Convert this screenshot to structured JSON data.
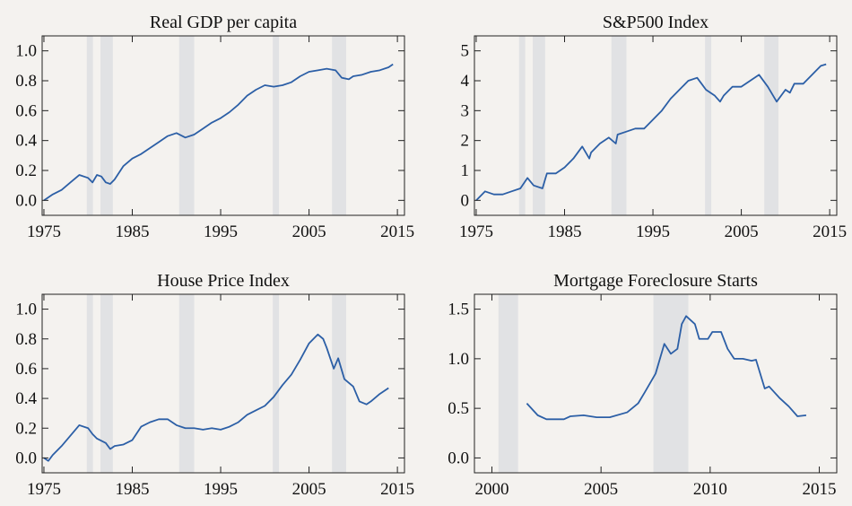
{
  "chart_data": [
    {
      "type": "line",
      "title": "Real GDP per capita",
      "color": "#2c5fa6",
      "x": [
        1975,
        1976,
        1977,
        1978,
        1979,
        1980,
        1980.5,
        1981,
        1981.5,
        1982,
        1982.5,
        1983,
        1984,
        1985,
        1986,
        1987,
        1988,
        1989,
        1990,
        1991,
        1992,
        1993,
        1994,
        1995,
        1996,
        1997,
        1998,
        1999,
        2000,
        2001,
        2002,
        2003,
        2004,
        2005,
        2006,
        2007,
        2008,
        2008.7,
        2009.5,
        2010,
        2011,
        2012,
        2013,
        2014,
        2014.5
      ],
      "values": [
        0.0,
        0.04,
        0.07,
        0.12,
        0.17,
        0.15,
        0.12,
        0.17,
        0.16,
        0.12,
        0.11,
        0.14,
        0.23,
        0.28,
        0.31,
        0.35,
        0.39,
        0.43,
        0.45,
        0.42,
        0.44,
        0.48,
        0.52,
        0.55,
        0.59,
        0.64,
        0.7,
        0.74,
        0.77,
        0.76,
        0.77,
        0.79,
        0.83,
        0.86,
        0.87,
        0.88,
        0.87,
        0.82,
        0.81,
        0.83,
        0.84,
        0.86,
        0.87,
        0.89,
        0.91
      ],
      "recessions": [
        [
          1979.85,
          1980.55
        ],
        [
          1981.4,
          1982.8
        ],
        [
          1990.3,
          1992.0
        ],
        [
          2000.9,
          2001.6
        ],
        [
          2007.6,
          2009.2
        ]
      ],
      "xlim": [
        1974.8,
        2015.8
      ],
      "xticks": [
        1975,
        1985,
        1995,
        2005,
        2015
      ],
      "ylim": [
        -0.1,
        1.1
      ],
      "yticks": [
        {
          "value": 0,
          "label": "0.0"
        },
        0.2,
        0.4,
        0.6,
        0.8,
        {
          "value": 1,
          "label": "1.0"
        }
      ]
    },
    {
      "type": "line",
      "title": "S&P500 Index",
      "color": "#2c5fa6",
      "x": [
        1975,
        1976,
        1977,
        1978,
        1979,
        1980,
        1980.8,
        1981.5,
        1982.5,
        1983,
        1984,
        1985,
        1986,
        1987,
        1987.8,
        1988,
        1989,
        1990,
        1990.8,
        1991,
        1992,
        1993,
        1994,
        1995,
        1996,
        1997,
        1998,
        1999,
        2000,
        2000.5,
        2001,
        2002,
        2002.6,
        2003,
        2004,
        2005,
        2006,
        2007,
        2008,
        2009,
        2010,
        2010.5,
        2011,
        2012,
        2013,
        2014,
        2014.6
      ],
      "values": [
        0.0,
        0.3,
        0.2,
        0.2,
        0.3,
        0.4,
        0.75,
        0.5,
        0.4,
        0.9,
        0.9,
        1.1,
        1.4,
        1.8,
        1.4,
        1.6,
        1.9,
        2.1,
        1.9,
        2.2,
        2.3,
        2.4,
        2.4,
        2.7,
        3.0,
        3.4,
        3.7,
        4.0,
        4.1,
        3.9,
        3.7,
        3.5,
        3.3,
        3.5,
        3.8,
        3.8,
        4.0,
        4.2,
        3.8,
        3.3,
        3.7,
        3.6,
        3.9,
        3.9,
        4.2,
        4.5,
        4.55
      ],
      "recessions": [
        [
          1979.85,
          1980.55
        ],
        [
          1981.4,
          1982.8
        ],
        [
          1990.3,
          1992.0
        ],
        [
          2000.9,
          2001.6
        ],
        [
          2007.6,
          2009.2
        ]
      ],
      "xlim": [
        1974.8,
        2015.8
      ],
      "xticks": [
        1975,
        1985,
        1995,
        2005,
        2015
      ],
      "ylim": [
        -0.5,
        5.5
      ],
      "yticks": [
        0,
        1,
        2,
        3,
        4,
        5
      ]
    },
    {
      "type": "line",
      "title": "House Price Index",
      "color": "#2c5fa6",
      "x": [
        1975,
        1975.5,
        1976,
        1977,
        1978,
        1979,
        1980,
        1980.5,
        1981,
        1982,
        1982.5,
        1983,
        1984,
        1985,
        1986,
        1987,
        1988,
        1989,
        1990,
        1991,
        1992,
        1993,
        1994,
        1995,
        1996,
        1997,
        1998,
        1999,
        2000,
        2001,
        2002,
        2003,
        2004,
        2005,
        2006,
        2006.6,
        2007,
        2007.8,
        2008.3,
        2009,
        2010,
        2010.7,
        2011.5,
        2012,
        2013,
        2014
      ],
      "values": [
        0.0,
        -0.02,
        0.02,
        0.08,
        0.15,
        0.22,
        0.2,
        0.16,
        0.13,
        0.1,
        0.06,
        0.08,
        0.09,
        0.12,
        0.21,
        0.24,
        0.26,
        0.26,
        0.22,
        0.2,
        0.2,
        0.19,
        0.2,
        0.19,
        0.21,
        0.24,
        0.29,
        0.32,
        0.35,
        0.41,
        0.49,
        0.56,
        0.66,
        0.77,
        0.83,
        0.8,
        0.74,
        0.6,
        0.67,
        0.53,
        0.48,
        0.38,
        0.36,
        0.38,
        0.43,
        0.47
      ],
      "recessions": [
        [
          1979.85,
          1980.55
        ],
        [
          1981.4,
          1982.8
        ],
        [
          1990.3,
          1992.0
        ],
        [
          2000.9,
          2001.6
        ],
        [
          2007.6,
          2009.2
        ]
      ],
      "xlim": [
        1974.8,
        2015.8
      ],
      "xticks": [
        1975,
        1985,
        1995,
        2005,
        2015
      ],
      "ylim": [
        -0.1,
        1.1
      ],
      "yticks": [
        {
          "value": 0,
          "label": "0.0"
        },
        0.2,
        0.4,
        0.6,
        0.8,
        {
          "value": 1,
          "label": "1.0"
        }
      ]
    },
    {
      "type": "line",
      "title": "Mortgage Foreclosure Starts",
      "color": "#2c5fa6",
      "x": [
        2001.6,
        2002.1,
        2002.5,
        2003.3,
        2003.6,
        2004.2,
        2004.8,
        2005.4,
        2006.2,
        2006.7,
        2007.0,
        2007.5,
        2007.9,
        2008.2,
        2008.5,
        2008.7,
        2008.9,
        2009.3,
        2009.5,
        2009.9,
        2010.1,
        2010.5,
        2010.8,
        2011.1,
        2011.5,
        2011.9,
        2012.1,
        2012.5,
        2012.7,
        2013.2,
        2013.6,
        2014.0,
        2014.4
      ],
      "values": [
        0.55,
        0.43,
        0.39,
        0.39,
        0.42,
        0.43,
        0.41,
        0.41,
        0.46,
        0.55,
        0.66,
        0.85,
        1.15,
        1.05,
        1.1,
        1.35,
        1.43,
        1.35,
        1.2,
        1.2,
        1.27,
        1.27,
        1.1,
        1.0,
        1.0,
        0.98,
        0.99,
        0.7,
        0.72,
        0.6,
        0.52,
        0.42,
        0.43
      ],
      "recessions": [
        [
          2000.3,
          2001.2
        ],
        [
          2007.4,
          2009.0
        ]
      ],
      "xlim": [
        1999.2,
        2015.8
      ],
      "xticks": [
        2000,
        2005,
        2010,
        2015
      ],
      "ylim": [
        -0.15,
        1.65
      ],
      "yticks": [
        {
          "value": 0,
          "label": "0.0"
        },
        0.5,
        {
          "value": 1,
          "label": "1.0"
        },
        1.5
      ]
    }
  ]
}
